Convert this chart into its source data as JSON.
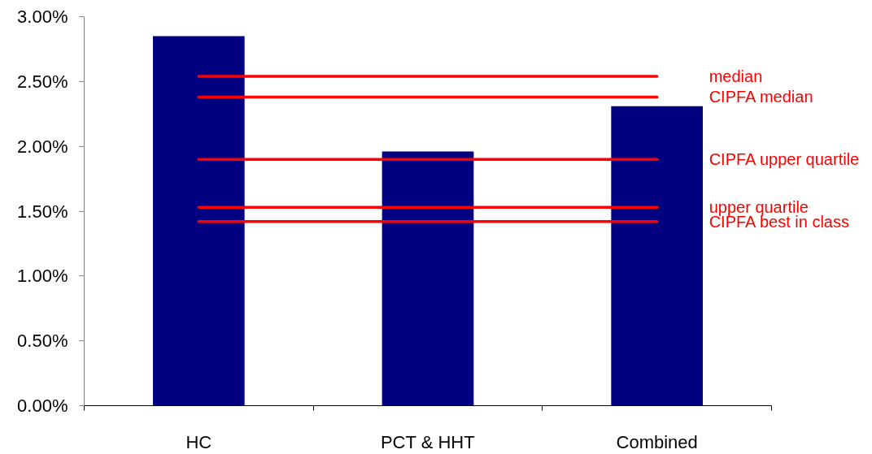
{
  "chart_data": {
    "type": "bar",
    "categories": [
      "HC",
      "PCT & HHT",
      "Combined"
    ],
    "values": [
      2.85,
      1.96,
      2.31
    ],
    "color": "#000080",
    "ylim": [
      0,
      3
    ],
    "yticks": [
      {
        "value": 0,
        "label": "0.00%"
      },
      {
        "value": 0.5,
        "label": "0.50%"
      },
      {
        "value": 1,
        "label": "1.00%"
      },
      {
        "value": 1.5,
        "label": "1.50%"
      },
      {
        "value": 2,
        "label": "2.00%"
      },
      {
        "value": 2.5,
        "label": "2.50%"
      },
      {
        "value": 3,
        "label": "3.00%"
      }
    ],
    "ref_lines": [
      {
        "axis": "y",
        "value": 2.54,
        "label": "median",
        "color": "#ff0000"
      },
      {
        "axis": "y",
        "value": 2.38,
        "label": "CIPFA median",
        "color": "#ff0000"
      },
      {
        "axis": "y",
        "value": 1.9,
        "label": "CIPFA upper quartile",
        "color": "#ff0000"
      },
      {
        "axis": "y",
        "value": 1.53,
        "label": "upper quartile",
        "color": "#ff0000"
      },
      {
        "axis": "y",
        "value": 1.42,
        "label": "CIPFA best in class",
        "color": "#ff0000"
      }
    ]
  }
}
